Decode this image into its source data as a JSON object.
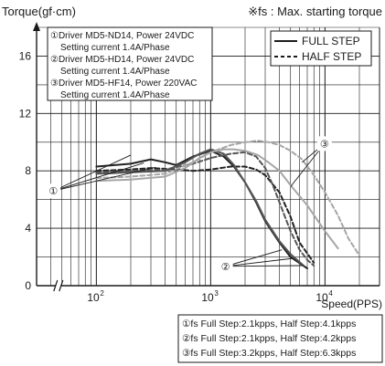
{
  "chart_data": {
    "type": "line",
    "title": "",
    "ylabel": "Torque(gf·cm)",
    "xlabel": "Speed(PPS)",
    "note": "※fs : Max. starting torque",
    "x_scale": "log",
    "xlim": [
      30,
      30000
    ],
    "ylim": [
      0,
      18
    ],
    "yticks": [
      0,
      4,
      8,
      12,
      16
    ],
    "ytick_labels": [
      "0",
      "4",
      "8",
      "12",
      "16"
    ],
    "xticks": [
      100,
      1000,
      10000
    ],
    "xtick_labels": [
      {
        "base": "10",
        "exp": "2"
      },
      {
        "base": "10",
        "exp": "3"
      },
      {
        "base": "10",
        "exp": "4"
      }
    ],
    "grid": true,
    "legend_placement": "top-right",
    "legend": [
      {
        "label": "FULL STEP",
        "style": "solid"
      },
      {
        "label": "HALF STEP",
        "style": "dashed"
      }
    ],
    "drivers_box": {
      "lines": [
        "①Driver MD5-ND14, Power 24VDC",
        "Setting current 1.4A/Phase",
        "②Driver MD5-HD14, Power 24VDC",
        "Setting current 1.4A/Phase",
        "③Driver MD5-HF14, Power 220VAC",
        "Setting current 1.4A/Phase"
      ]
    },
    "fs_box": {
      "lines": [
        "①fs Full Step:2.1kpps, Half Step:4.1kpps",
        "②fs Full Step:2.1kpps, Half Step:4.2kpps",
        "③fs Full Step:3.2kpps, Half Step:6.3kpps"
      ]
    },
    "callouts": [
      {
        "label": "①",
        "x": 42,
        "y": 6.6
      },
      {
        "label": "②",
        "x": 1350,
        "y": 1.35
      },
      {
        "label": "③",
        "x": 9900,
        "y": 9.9
      }
    ],
    "series": [
      {
        "id": "s1-full",
        "driver": "①",
        "mode": "FULL STEP",
        "style": "solid",
        "color": "#222222",
        "x": [
          100,
          200,
          300,
          400,
          500,
          700,
          1000,
          1300,
          1600,
          2000,
          2500,
          3000,
          4000,
          5000,
          7000
        ],
        "y": [
          8.3,
          8.5,
          8.8,
          8.6,
          8.4,
          9.0,
          9.4,
          9.0,
          8.3,
          7.2,
          5.8,
          4.5,
          3.0,
          2.0,
          1.2
        ]
      },
      {
        "id": "s1-half",
        "driver": "①",
        "mode": "HALF STEP",
        "style": "dashed",
        "color": "#222222",
        "x": [
          100,
          200,
          300,
          500,
          700,
          1000,
          1500,
          2000,
          2500,
          3000,
          4000,
          5000,
          6000,
          8000
        ],
        "y": [
          8.0,
          8.1,
          8.2,
          8.1,
          8.0,
          8.1,
          8.3,
          8.3,
          8.1,
          7.7,
          6.5,
          4.8,
          3.0,
          1.6
        ]
      },
      {
        "id": "s2-full",
        "driver": "②",
        "mode": "FULL STEP",
        "style": "solid",
        "color": "#555555",
        "x": [
          100,
          200,
          400,
          600,
          800,
          1000,
          1300,
          1600,
          2000,
          2500,
          3000,
          4000,
          5000,
          6500
        ],
        "y": [
          7.8,
          7.9,
          8.0,
          8.6,
          9.2,
          9.5,
          9.2,
          8.4,
          7.2,
          5.9,
          4.6,
          3.1,
          2.2,
          1.4
        ]
      },
      {
        "id": "s2-half",
        "driver": "②",
        "mode": "HALF STEP",
        "style": "dashed",
        "color": "#555555",
        "x": [
          100,
          200,
          400,
          700,
          1000,
          1500,
          2000,
          2500,
          3000,
          3500,
          4000,
          5000,
          6000,
          7000,
          8000
        ],
        "y": [
          7.9,
          8.0,
          8.1,
          8.5,
          8.9,
          9.2,
          9.3,
          9.0,
          8.2,
          7.0,
          5.8,
          3.8,
          2.5,
          1.8,
          1.4
        ]
      },
      {
        "id": "s3-full",
        "driver": "③",
        "mode": "FULL STEP",
        "style": "solid",
        "color": "#a6a6a6",
        "x": [
          100,
          200,
          400,
          600,
          800,
          1000,
          1300,
          1600,
          2000,
          2600,
          3200,
          4000,
          5000,
          7000,
          10000,
          13000
        ],
        "y": [
          7.3,
          7.4,
          7.6,
          8.2,
          8.9,
          9.3,
          9.5,
          9.5,
          9.4,
          9.1,
          8.6,
          8.0,
          7.0,
          5.6,
          3.8,
          2.6
        ]
      },
      {
        "id": "s3-half",
        "driver": "③",
        "mode": "HALF STEP",
        "style": "dashed",
        "color": "#a6a6a6",
        "x": [
          100,
          200,
          400,
          700,
          1000,
          1500,
          2000,
          2600,
          3200,
          4000,
          5000,
          6300,
          8000,
          10000,
          13000,
          16000,
          20000
        ],
        "y": [
          7.5,
          7.6,
          7.8,
          8.6,
          9.3,
          9.8,
          10.0,
          10.1,
          10.0,
          9.8,
          9.4,
          8.8,
          7.7,
          6.5,
          4.9,
          3.3,
          2.1
        ]
      }
    ]
  }
}
